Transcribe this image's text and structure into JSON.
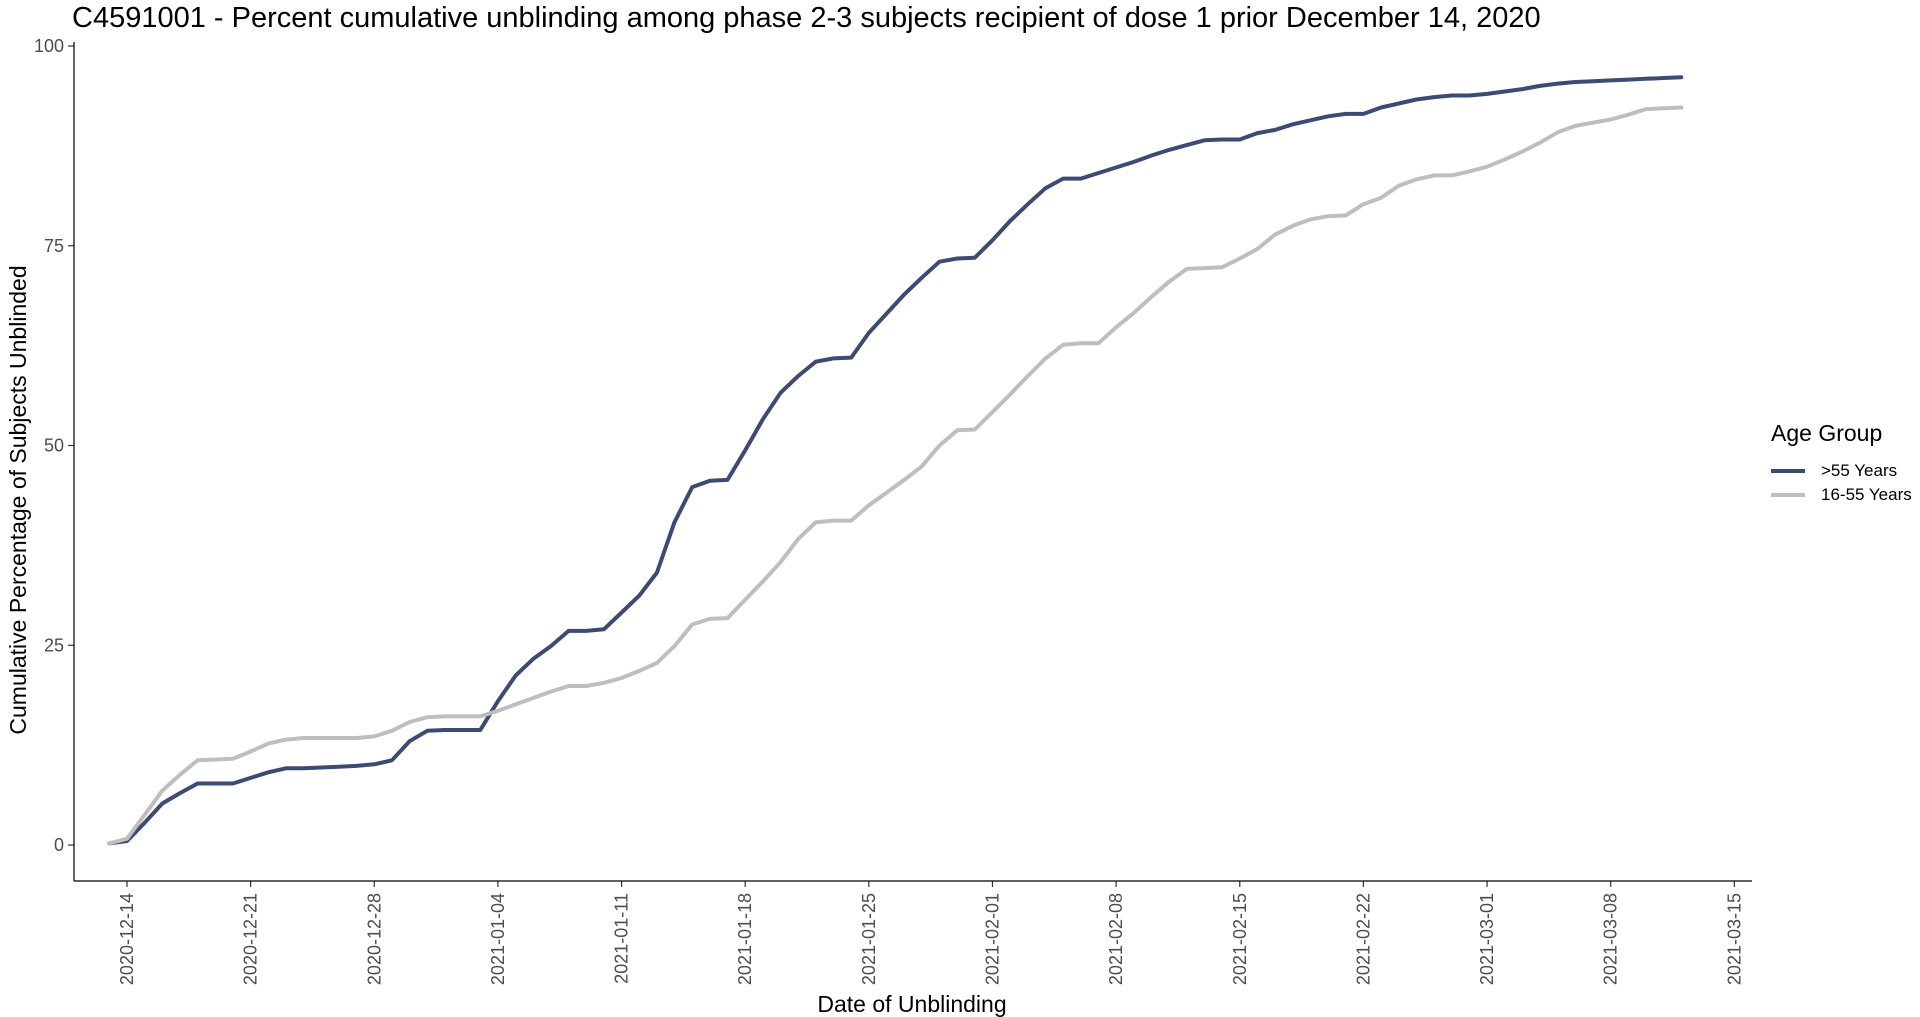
{
  "chart_data": {
    "type": "line",
    "title": "C4591001 - Percent cumulative unblinding among phase 2-3 subjects recipient of dose 1 prior December 14, 2020",
    "xlabel": "Date of Unblinding",
    "ylabel": "Cumulative Percentage of Subjects Unblinded",
    "xlim": [
      "2020-12-11",
      "2021-03-16"
    ],
    "ylim": [
      -4.5,
      100.5
    ],
    "x_ticks": [
      "2020-12-14",
      "2020-12-21",
      "2020-12-28",
      "2021-01-04",
      "2021-01-11",
      "2021-01-18",
      "2021-01-25",
      "2021-02-01",
      "2021-02-08",
      "2021-02-15",
      "2021-02-22",
      "2021-03-01",
      "2021-03-08",
      "2021-03-15"
    ],
    "y_ticks": [
      0,
      25,
      50,
      75,
      100
    ],
    "grid": false,
    "legend": {
      "title": "Age Group",
      "placement": "right"
    },
    "series": [
      {
        "name": ">55 Years",
        "color": "#3D4A73",
        "points": [
          [
            "2020-12-13",
            0.2
          ],
          [
            "2020-12-14",
            0.5
          ],
          [
            "2020-12-15",
            2.8
          ],
          [
            "2020-12-16",
            5.2
          ],
          [
            "2020-12-17",
            6.5
          ],
          [
            "2020-12-18",
            7.7
          ],
          [
            "2020-12-19",
            7.7
          ],
          [
            "2020-12-20",
            7.7
          ],
          [
            "2020-12-21",
            8.4
          ],
          [
            "2020-12-22",
            9.1
          ],
          [
            "2020-12-23",
            9.6
          ],
          [
            "2020-12-24",
            9.6
          ],
          [
            "2020-12-25",
            9.7
          ],
          [
            "2020-12-26",
            9.8
          ],
          [
            "2020-12-27",
            9.9
          ],
          [
            "2020-12-28",
            10.1
          ],
          [
            "2020-12-29",
            10.6
          ],
          [
            "2020-12-30",
            13.0
          ],
          [
            "2020-12-31",
            14.3
          ],
          [
            "2021-01-01",
            14.4
          ],
          [
            "2021-01-02",
            14.4
          ],
          [
            "2021-01-03",
            14.4
          ],
          [
            "2021-01-04",
            18.0
          ],
          [
            "2021-01-05",
            21.2
          ],
          [
            "2021-01-06",
            23.3
          ],
          [
            "2021-01-07",
            24.9
          ],
          [
            "2021-01-08",
            26.8
          ],
          [
            "2021-01-09",
            26.8
          ],
          [
            "2021-01-10",
            27.0
          ],
          [
            "2021-01-11",
            29.1
          ],
          [
            "2021-01-12",
            31.2
          ],
          [
            "2021-01-13",
            34.1
          ],
          [
            "2021-01-14",
            40.4
          ],
          [
            "2021-01-15",
            44.8
          ],
          [
            "2021-01-16",
            45.6
          ],
          [
            "2021-01-17",
            45.7
          ],
          [
            "2021-01-18",
            49.4
          ],
          [
            "2021-01-19",
            53.3
          ],
          [
            "2021-01-20",
            56.6
          ],
          [
            "2021-01-21",
            58.7
          ],
          [
            "2021-01-22",
            60.5
          ],
          [
            "2021-01-23",
            60.9
          ],
          [
            "2021-01-24",
            61.0
          ],
          [
            "2021-01-25",
            64.1
          ],
          [
            "2021-01-26",
            66.5
          ],
          [
            "2021-01-27",
            68.9
          ],
          [
            "2021-01-28",
            71.0
          ],
          [
            "2021-01-29",
            73.0
          ],
          [
            "2021-01-30",
            73.4
          ],
          [
            "2021-01-31",
            73.5
          ],
          [
            "2021-02-01",
            75.7
          ],
          [
            "2021-02-02",
            78.1
          ],
          [
            "2021-02-03",
            80.2
          ],
          [
            "2021-02-04",
            82.2
          ],
          [
            "2021-02-05",
            83.4
          ],
          [
            "2021-02-06",
            83.4
          ],
          [
            "2021-02-07",
            84.1
          ],
          [
            "2021-02-08",
            84.8
          ],
          [
            "2021-02-09",
            85.5
          ],
          [
            "2021-02-10",
            86.3
          ],
          [
            "2021-02-11",
            87.0
          ],
          [
            "2021-02-12",
            87.6
          ],
          [
            "2021-02-13",
            88.2
          ],
          [
            "2021-02-14",
            88.3
          ],
          [
            "2021-02-15",
            88.3
          ],
          [
            "2021-02-16",
            89.1
          ],
          [
            "2021-02-17",
            89.5
          ],
          [
            "2021-02-18",
            90.2
          ],
          [
            "2021-02-19",
            90.7
          ],
          [
            "2021-02-20",
            91.2
          ],
          [
            "2021-02-21",
            91.5
          ],
          [
            "2021-02-22",
            91.5
          ],
          [
            "2021-02-23",
            92.3
          ],
          [
            "2021-02-24",
            92.8
          ],
          [
            "2021-02-25",
            93.3
          ],
          [
            "2021-02-26",
            93.6
          ],
          [
            "2021-02-27",
            93.8
          ],
          [
            "2021-02-28",
            93.8
          ],
          [
            "2021-03-01",
            94.0
          ],
          [
            "2021-03-02",
            94.3
          ],
          [
            "2021-03-03",
            94.6
          ],
          [
            "2021-03-04",
            95.0
          ],
          [
            "2021-03-05",
            95.3
          ],
          [
            "2021-03-06",
            95.5
          ],
          [
            "2021-03-07",
            95.6
          ],
          [
            "2021-03-08",
            95.7
          ],
          [
            "2021-03-09",
            95.8
          ],
          [
            "2021-03-10",
            95.9
          ],
          [
            "2021-03-11",
            96.0
          ],
          [
            "2021-03-12",
            96.1
          ]
        ]
      },
      {
        "name": "16-55 Years",
        "color": "#BEBEBE",
        "points": [
          [
            "2020-12-13",
            0.2
          ],
          [
            "2020-12-14",
            0.8
          ],
          [
            "2020-12-15",
            3.8
          ],
          [
            "2020-12-16",
            6.8
          ],
          [
            "2020-12-17",
            8.8
          ],
          [
            "2020-12-18",
            10.6
          ],
          [
            "2020-12-19",
            10.7
          ],
          [
            "2020-12-20",
            10.8
          ],
          [
            "2020-12-21",
            11.7
          ],
          [
            "2020-12-22",
            12.7
          ],
          [
            "2020-12-23",
            13.2
          ],
          [
            "2020-12-24",
            13.4
          ],
          [
            "2020-12-25",
            13.4
          ],
          [
            "2020-12-26",
            13.4
          ],
          [
            "2020-12-27",
            13.4
          ],
          [
            "2020-12-28",
            13.6
          ],
          [
            "2020-12-29",
            14.3
          ],
          [
            "2020-12-30",
            15.4
          ],
          [
            "2020-12-31",
            16.0
          ],
          [
            "2021-01-01",
            16.1
          ],
          [
            "2021-01-02",
            16.1
          ],
          [
            "2021-01-03",
            16.1
          ],
          [
            "2021-01-04",
            16.8
          ],
          [
            "2021-01-05",
            17.6
          ],
          [
            "2021-01-06",
            18.4
          ],
          [
            "2021-01-07",
            19.2
          ],
          [
            "2021-01-08",
            19.9
          ],
          [
            "2021-01-09",
            19.9
          ],
          [
            "2021-01-10",
            20.3
          ],
          [
            "2021-01-11",
            20.9
          ],
          [
            "2021-01-12",
            21.8
          ],
          [
            "2021-01-13",
            22.8
          ],
          [
            "2021-01-14",
            24.9
          ],
          [
            "2021-01-15",
            27.6
          ],
          [
            "2021-01-16",
            28.3
          ],
          [
            "2021-01-17",
            28.4
          ],
          [
            "2021-01-18",
            30.7
          ],
          [
            "2021-01-19",
            33.0
          ],
          [
            "2021-01-20",
            35.4
          ],
          [
            "2021-01-21",
            38.3
          ],
          [
            "2021-01-22",
            40.4
          ],
          [
            "2021-01-23",
            40.6
          ],
          [
            "2021-01-24",
            40.6
          ],
          [
            "2021-01-25",
            42.5
          ],
          [
            "2021-01-26",
            44.1
          ],
          [
            "2021-01-27",
            45.7
          ],
          [
            "2021-01-28",
            47.4
          ],
          [
            "2021-01-29",
            50.0
          ],
          [
            "2021-01-30",
            51.9
          ],
          [
            "2021-01-31",
            52.0
          ],
          [
            "2021-02-01",
            54.2
          ],
          [
            "2021-02-02",
            56.4
          ],
          [
            "2021-02-03",
            58.7
          ],
          [
            "2021-02-04",
            60.9
          ],
          [
            "2021-02-05",
            62.6
          ],
          [
            "2021-02-06",
            62.8
          ],
          [
            "2021-02-07",
            62.8
          ],
          [
            "2021-02-08",
            64.8
          ],
          [
            "2021-02-09",
            66.6
          ],
          [
            "2021-02-10",
            68.6
          ],
          [
            "2021-02-11",
            70.5
          ],
          [
            "2021-02-12",
            72.1
          ],
          [
            "2021-02-13",
            72.2
          ],
          [
            "2021-02-14",
            72.3
          ],
          [
            "2021-02-15",
            73.4
          ],
          [
            "2021-02-16",
            74.6
          ],
          [
            "2021-02-17",
            76.4
          ],
          [
            "2021-02-18",
            77.5
          ],
          [
            "2021-02-19",
            78.3
          ],
          [
            "2021-02-20",
            78.7
          ],
          [
            "2021-02-21",
            78.8
          ],
          [
            "2021-02-22",
            80.2
          ],
          [
            "2021-02-23",
            81.0
          ],
          [
            "2021-02-24",
            82.5
          ],
          [
            "2021-02-25",
            83.3
          ],
          [
            "2021-02-26",
            83.8
          ],
          [
            "2021-02-27",
            83.8
          ],
          [
            "2021-02-28",
            84.3
          ],
          [
            "2021-03-01",
            84.9
          ],
          [
            "2021-03-02",
            85.8
          ],
          [
            "2021-03-03",
            86.8
          ],
          [
            "2021-03-04",
            87.9
          ],
          [
            "2021-03-05",
            89.2
          ],
          [
            "2021-03-06",
            90.0
          ],
          [
            "2021-03-07",
            90.4
          ],
          [
            "2021-03-08",
            90.8
          ],
          [
            "2021-03-09",
            91.4
          ],
          [
            "2021-03-10",
            92.1
          ],
          [
            "2021-03-11",
            92.2
          ],
          [
            "2021-03-12",
            92.3
          ]
        ]
      }
    ]
  }
}
